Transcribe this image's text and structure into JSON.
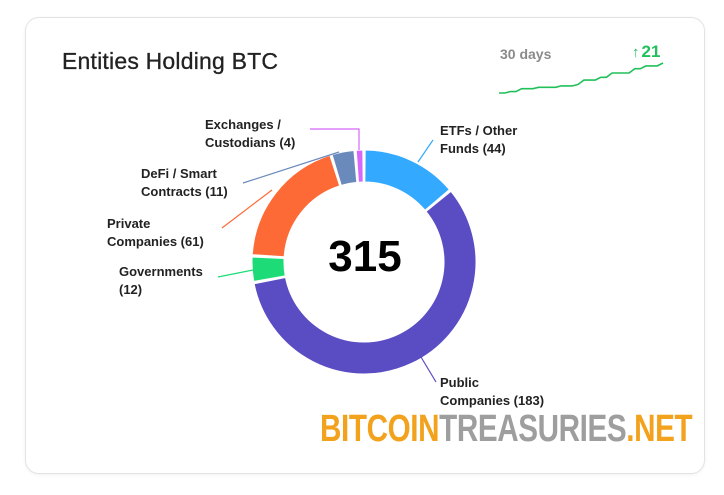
{
  "header": {
    "title": "Entities Holding BTC",
    "period_label": "30 days",
    "change_value": "21",
    "change_arrow": "↑"
  },
  "logo": {
    "part1": "BITCOIN",
    "part2": "TREASURIES",
    "part3": ".NET"
  },
  "colors": {
    "accent_green": "#21c05a",
    "etf": "#33aaff",
    "public": "#5a4dc4",
    "governments": "#1ddc78",
    "private": "#fe6a35",
    "defi": "#6b8abc",
    "exchanges": "#d568fb"
  },
  "chart_data": {
    "type": "pie",
    "center_label": "315",
    "total": 315,
    "slices": [
      {
        "key": "etf",
        "label_line1": "ETFs / Other",
        "label_line2": "Funds (44)",
        "value": 44,
        "color": "#33aaff"
      },
      {
        "key": "public",
        "label_line1": "Public",
        "label_line2": "Companies (183)",
        "value": 183,
        "color": "#5a4dc4"
      },
      {
        "key": "governments",
        "label_line1": "Governments",
        "label_line2": "(12)",
        "value": 12,
        "color": "#1ddc78"
      },
      {
        "key": "private",
        "label_line1": "Private",
        "label_line2": "Companies (61)",
        "value": 61,
        "color": "#fe6a35"
      },
      {
        "key": "defi",
        "label_line1": "DeFi / Smart",
        "label_line2": "Contracts (11)",
        "value": 11,
        "color": "#6b8abc"
      },
      {
        "key": "exchanges",
        "label_line1": "Exchanges /",
        "label_line2": "Custodians (4)",
        "value": 4,
        "color": "#d568fb"
      }
    ],
    "sparkline": {
      "period": "30 days",
      "values": [
        294,
        294,
        295,
        295,
        297,
        297,
        297,
        298,
        298,
        298,
        298,
        299,
        299,
        299,
        300,
        303,
        303,
        303,
        305,
        305,
        308,
        308,
        308,
        308,
        311,
        311,
        313,
        313,
        313,
        315
      ]
    }
  }
}
